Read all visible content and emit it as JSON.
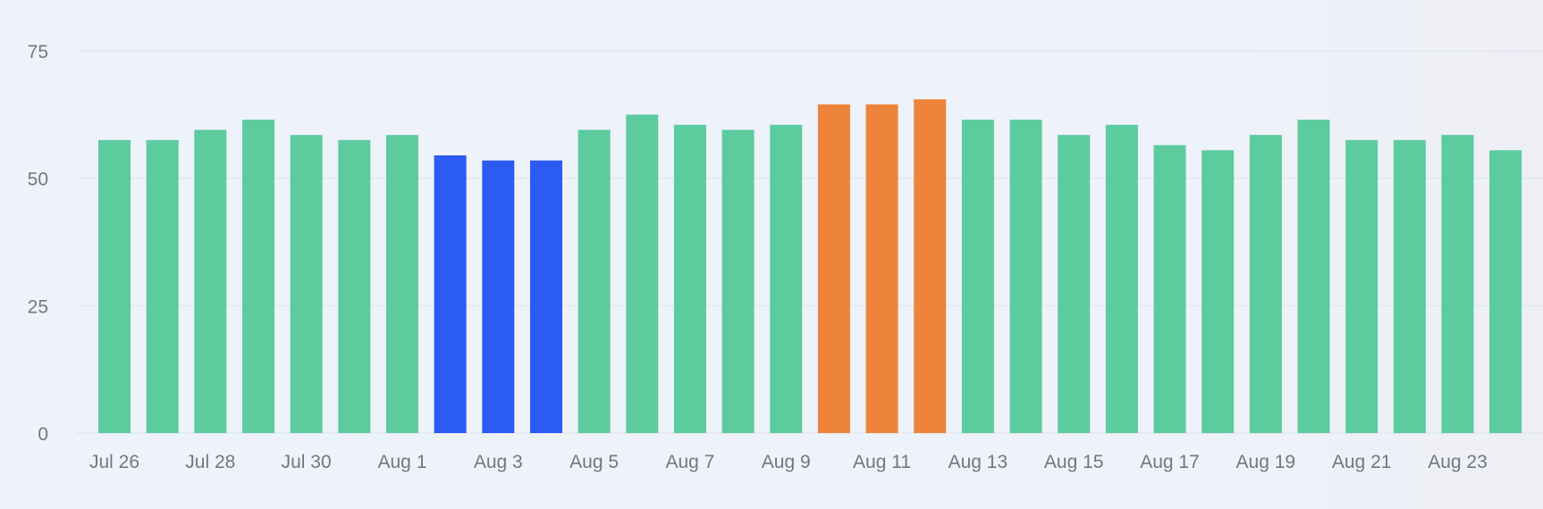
{
  "chart_data": {
    "type": "bar",
    "title": "",
    "xlabel": "",
    "ylabel": "",
    "ylim": [
      0,
      75
    ],
    "yticks": [
      0,
      25,
      50,
      75
    ],
    "grid": true,
    "legend": "none",
    "categories": [
      "Jul 26",
      "Jul 27",
      "Jul 28",
      "Jul 29",
      "Jul 30",
      "Jul 31",
      "Aug 1",
      "Aug 2",
      "Aug 3",
      "Aug 4",
      "Aug 5",
      "Aug 6",
      "Aug 7",
      "Aug 8",
      "Aug 9",
      "Aug 10",
      "Aug 11",
      "Aug 12",
      "Aug 13",
      "Aug 14",
      "Aug 15",
      "Aug 16",
      "Aug 17",
      "Aug 18",
      "Aug 19",
      "Aug 20",
      "Aug 21",
      "Aug 22",
      "Aug 23",
      "Aug 24"
    ],
    "xtick_labels": [
      "Jul 26",
      "Jul 28",
      "Jul 30",
      "Aug 1",
      "Aug 3",
      "Aug 5",
      "Aug 7",
      "Aug 9",
      "Aug 11",
      "Aug 13",
      "Aug 15",
      "Aug 17",
      "Aug 19",
      "Aug 21",
      "Aug 23"
    ],
    "values": [
      57.5,
      57.5,
      59.5,
      61.5,
      58.5,
      57.5,
      58.5,
      54.5,
      53.5,
      53.5,
      59.5,
      62.5,
      60.5,
      59.5,
      60.5,
      64.5,
      64.5,
      65.5,
      61.5,
      61.5,
      58.5,
      60.5,
      56.5,
      55.5,
      58.5,
      61.5,
      57.5,
      57.5,
      58.5,
      55.5
    ],
    "bar_groups": [
      "normal",
      "normal",
      "normal",
      "normal",
      "normal",
      "normal",
      "normal",
      "low",
      "low",
      "low",
      "normal",
      "normal",
      "normal",
      "normal",
      "normal",
      "high",
      "high",
      "high",
      "normal",
      "normal",
      "normal",
      "normal",
      "normal",
      "normal",
      "normal",
      "normal",
      "normal",
      "normal",
      "normal",
      "normal"
    ],
    "colors": {
      "normal": "#5ccb9e",
      "low": "#2c5bf3",
      "high": "#ee833a",
      "grid": "#dfe3ec",
      "tick_text": "#6f7787"
    }
  }
}
